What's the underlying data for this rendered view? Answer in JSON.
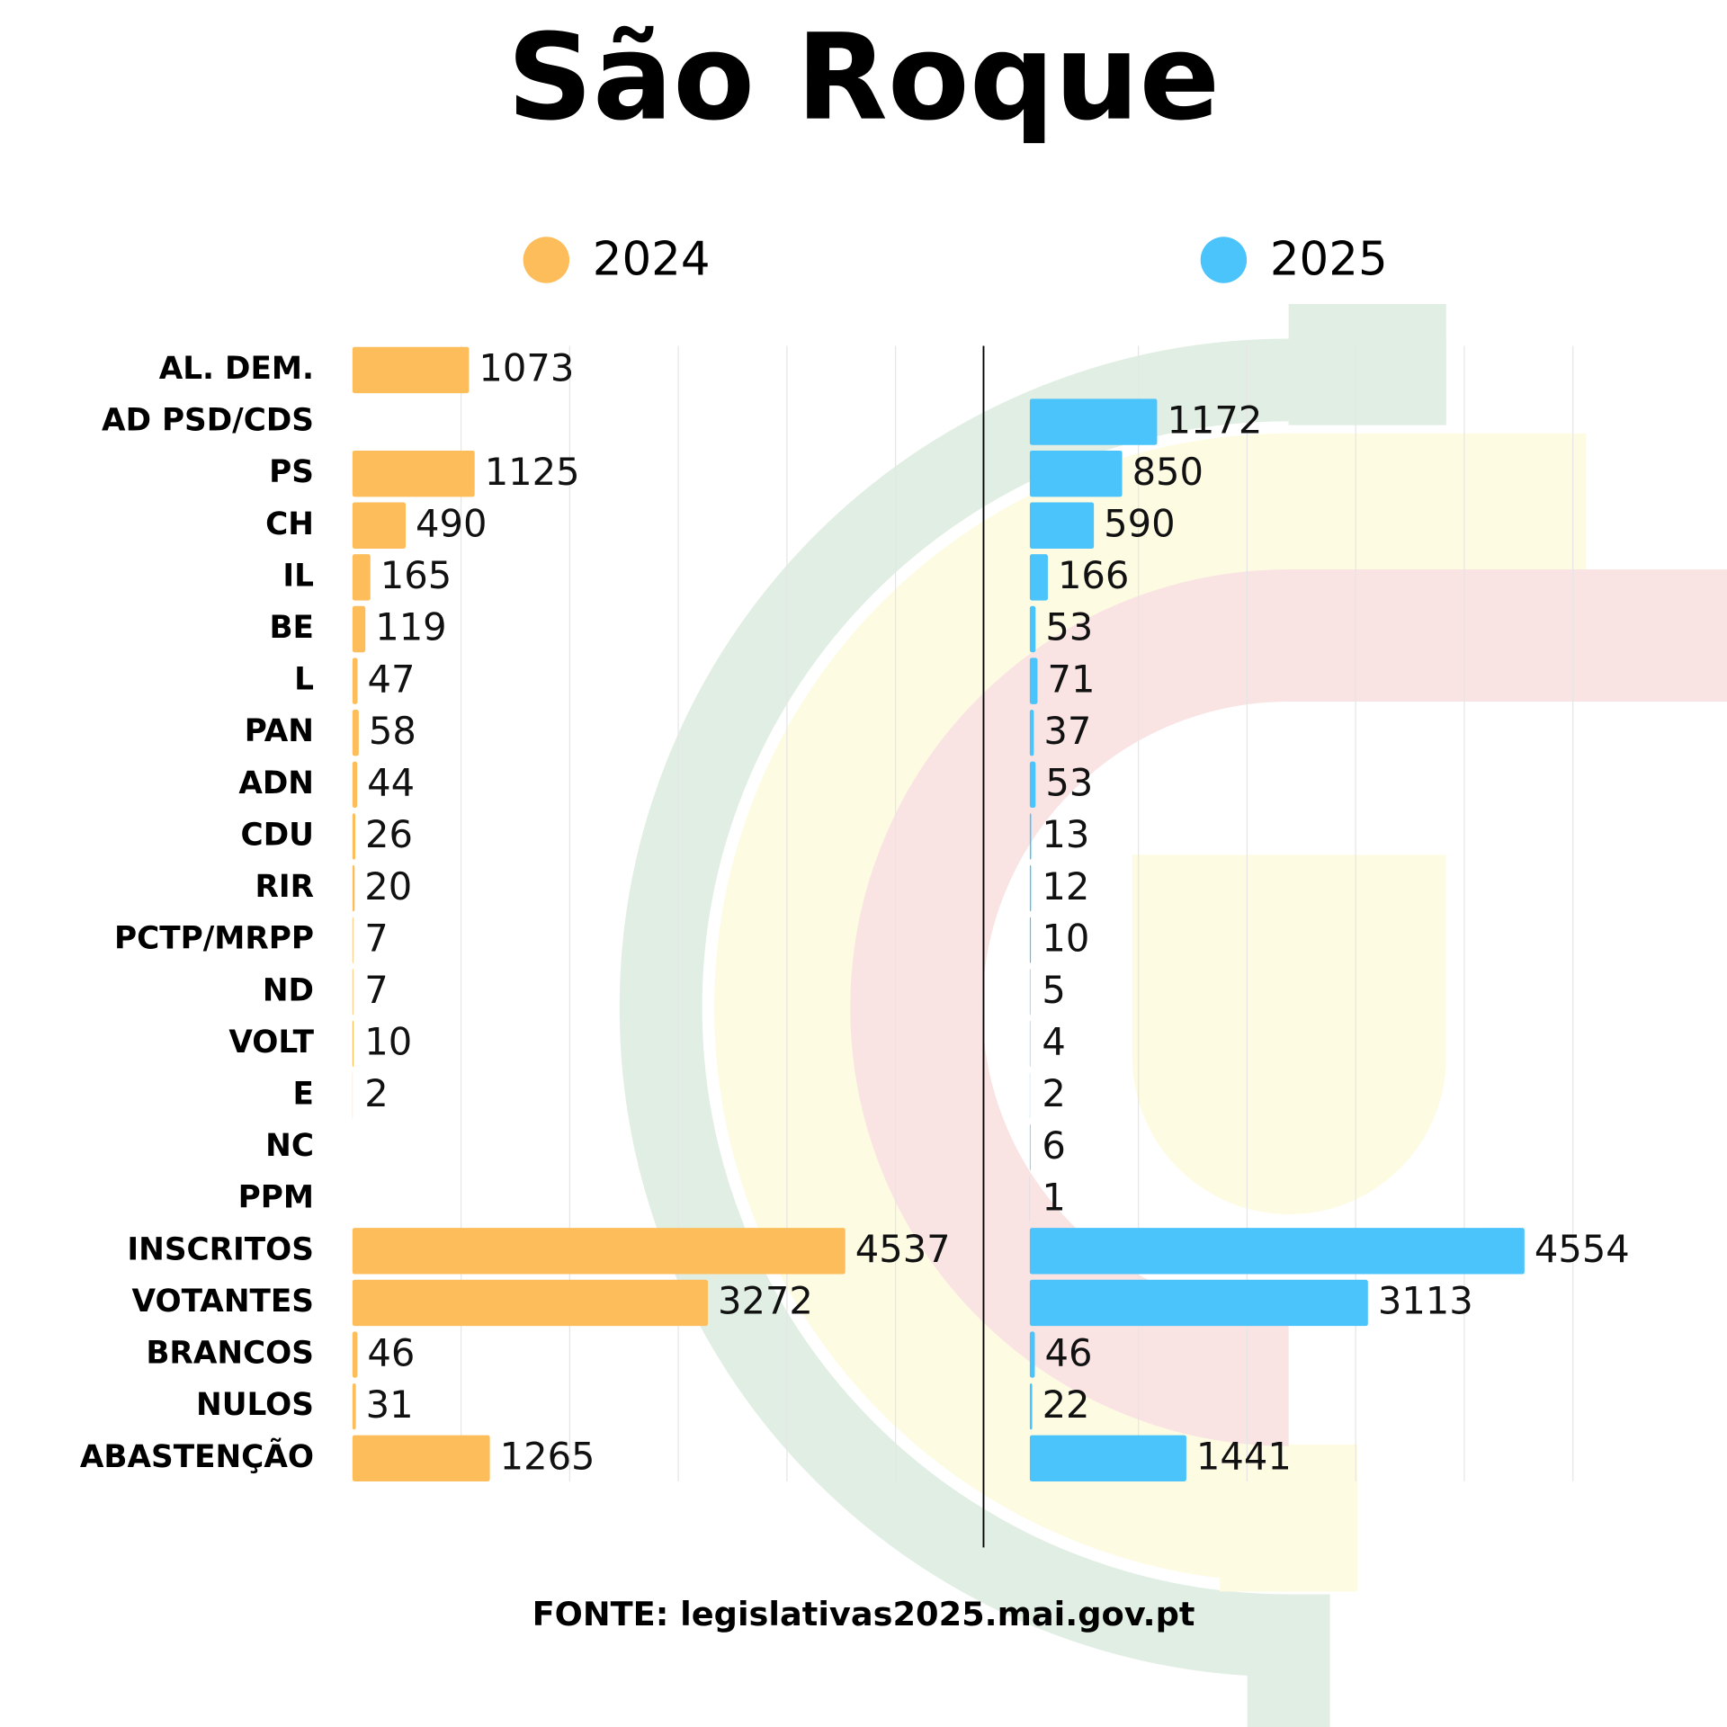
{
  "chart_data": {
    "type": "bar",
    "orientation": "horizontal",
    "title": "São Roque",
    "categories": [
      "AL. DEM.",
      "AD PSD/CDS",
      "PS",
      "CH",
      "IL",
      "BE",
      "L",
      "PAN",
      "ADN",
      "CDU",
      "RIR",
      "PCTP/MRPP",
      "ND",
      "VOLT",
      "E",
      "NC",
      "PPM",
      "INSCRITOS",
      "VOTANTES",
      "BRANCOS",
      "NULOS",
      "ABASTENÇÃO"
    ],
    "series": [
      {
        "name": "2024",
        "color": "#fdbd5a",
        "values": [
          1073,
          null,
          1125,
          490,
          165,
          119,
          47,
          58,
          44,
          26,
          20,
          7,
          7,
          10,
          2,
          null,
          null,
          4537,
          3272,
          46,
          31,
          1265
        ]
      },
      {
        "name": "2025",
        "color": "#4bc3fb",
        "values": [
          null,
          1172,
          850,
          590,
          166,
          53,
          71,
          37,
          53,
          13,
          12,
          10,
          5,
          4,
          2,
          6,
          1,
          4554,
          3113,
          46,
          22,
          1441
        ]
      }
    ],
    "xlim": [
      0,
      5800
    ],
    "xticks": [
      1000,
      2000,
      3000,
      4000,
      5000
    ],
    "grid": true,
    "source": "FONTE: legislativas2025.mai.gov.pt"
  }
}
